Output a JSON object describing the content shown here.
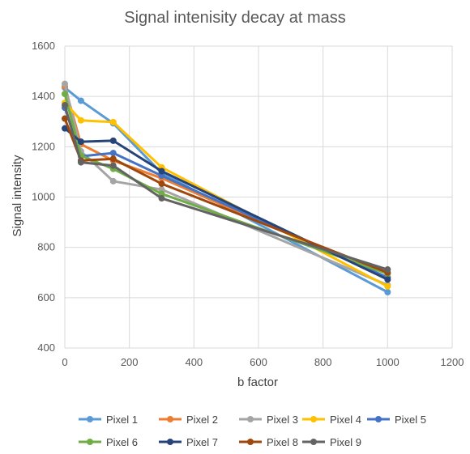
{
  "chart_data": {
    "type": "line",
    "title": "Signal intenisity decay at mass",
    "xlabel": "b factor",
    "ylabel": "Signal intensity",
    "xlim": [
      0,
      1200
    ],
    "ylim": [
      400,
      1600
    ],
    "x_ticks": [
      "0",
      "200",
      "400",
      "600",
      "800",
      "1000",
      "1200"
    ],
    "y_ticks": [
      "400",
      "600",
      "800",
      "1000",
      "1200",
      "1400",
      "1600"
    ],
    "grid": true,
    "legend_position": "bottom",
    "x": [
      0,
      50,
      150,
      300,
      1000
    ],
    "series": [
      {
        "name": "Pixel 1",
        "color": "#5B9BD5",
        "values": [
          1435,
          1383,
          1293,
          1095,
          622
        ]
      },
      {
        "name": "Pixel 2",
        "color": "#ED7D31",
        "values": [
          1440,
          1210,
          1145,
          1075,
          680
        ]
      },
      {
        "name": "Pixel 3",
        "color": "#A5A5A5",
        "values": [
          1450,
          1182,
          1063,
          1030,
          650
        ]
      },
      {
        "name": "Pixel 4",
        "color": "#FFC000",
        "values": [
          1375,
          1305,
          1298,
          1118,
          645
        ]
      },
      {
        "name": "Pixel 5",
        "color": "#4472C4",
        "values": [
          1355,
          1162,
          1175,
          1085,
          680
        ]
      },
      {
        "name": "Pixel 6",
        "color": "#70AD47",
        "values": [
          1410,
          1165,
          1112,
          1013,
          695
        ]
      },
      {
        "name": "Pixel 7",
        "color": "#264478",
        "values": [
          1273,
          1220,
          1224,
          1103,
          672
        ]
      },
      {
        "name": "Pixel 8",
        "color": "#9E480E",
        "values": [
          1312,
          1145,
          1152,
          1053,
          700
        ]
      },
      {
        "name": "Pixel 9",
        "color": "#636363",
        "values": [
          1365,
          1138,
          1125,
          995,
          712
        ]
      }
    ]
  }
}
